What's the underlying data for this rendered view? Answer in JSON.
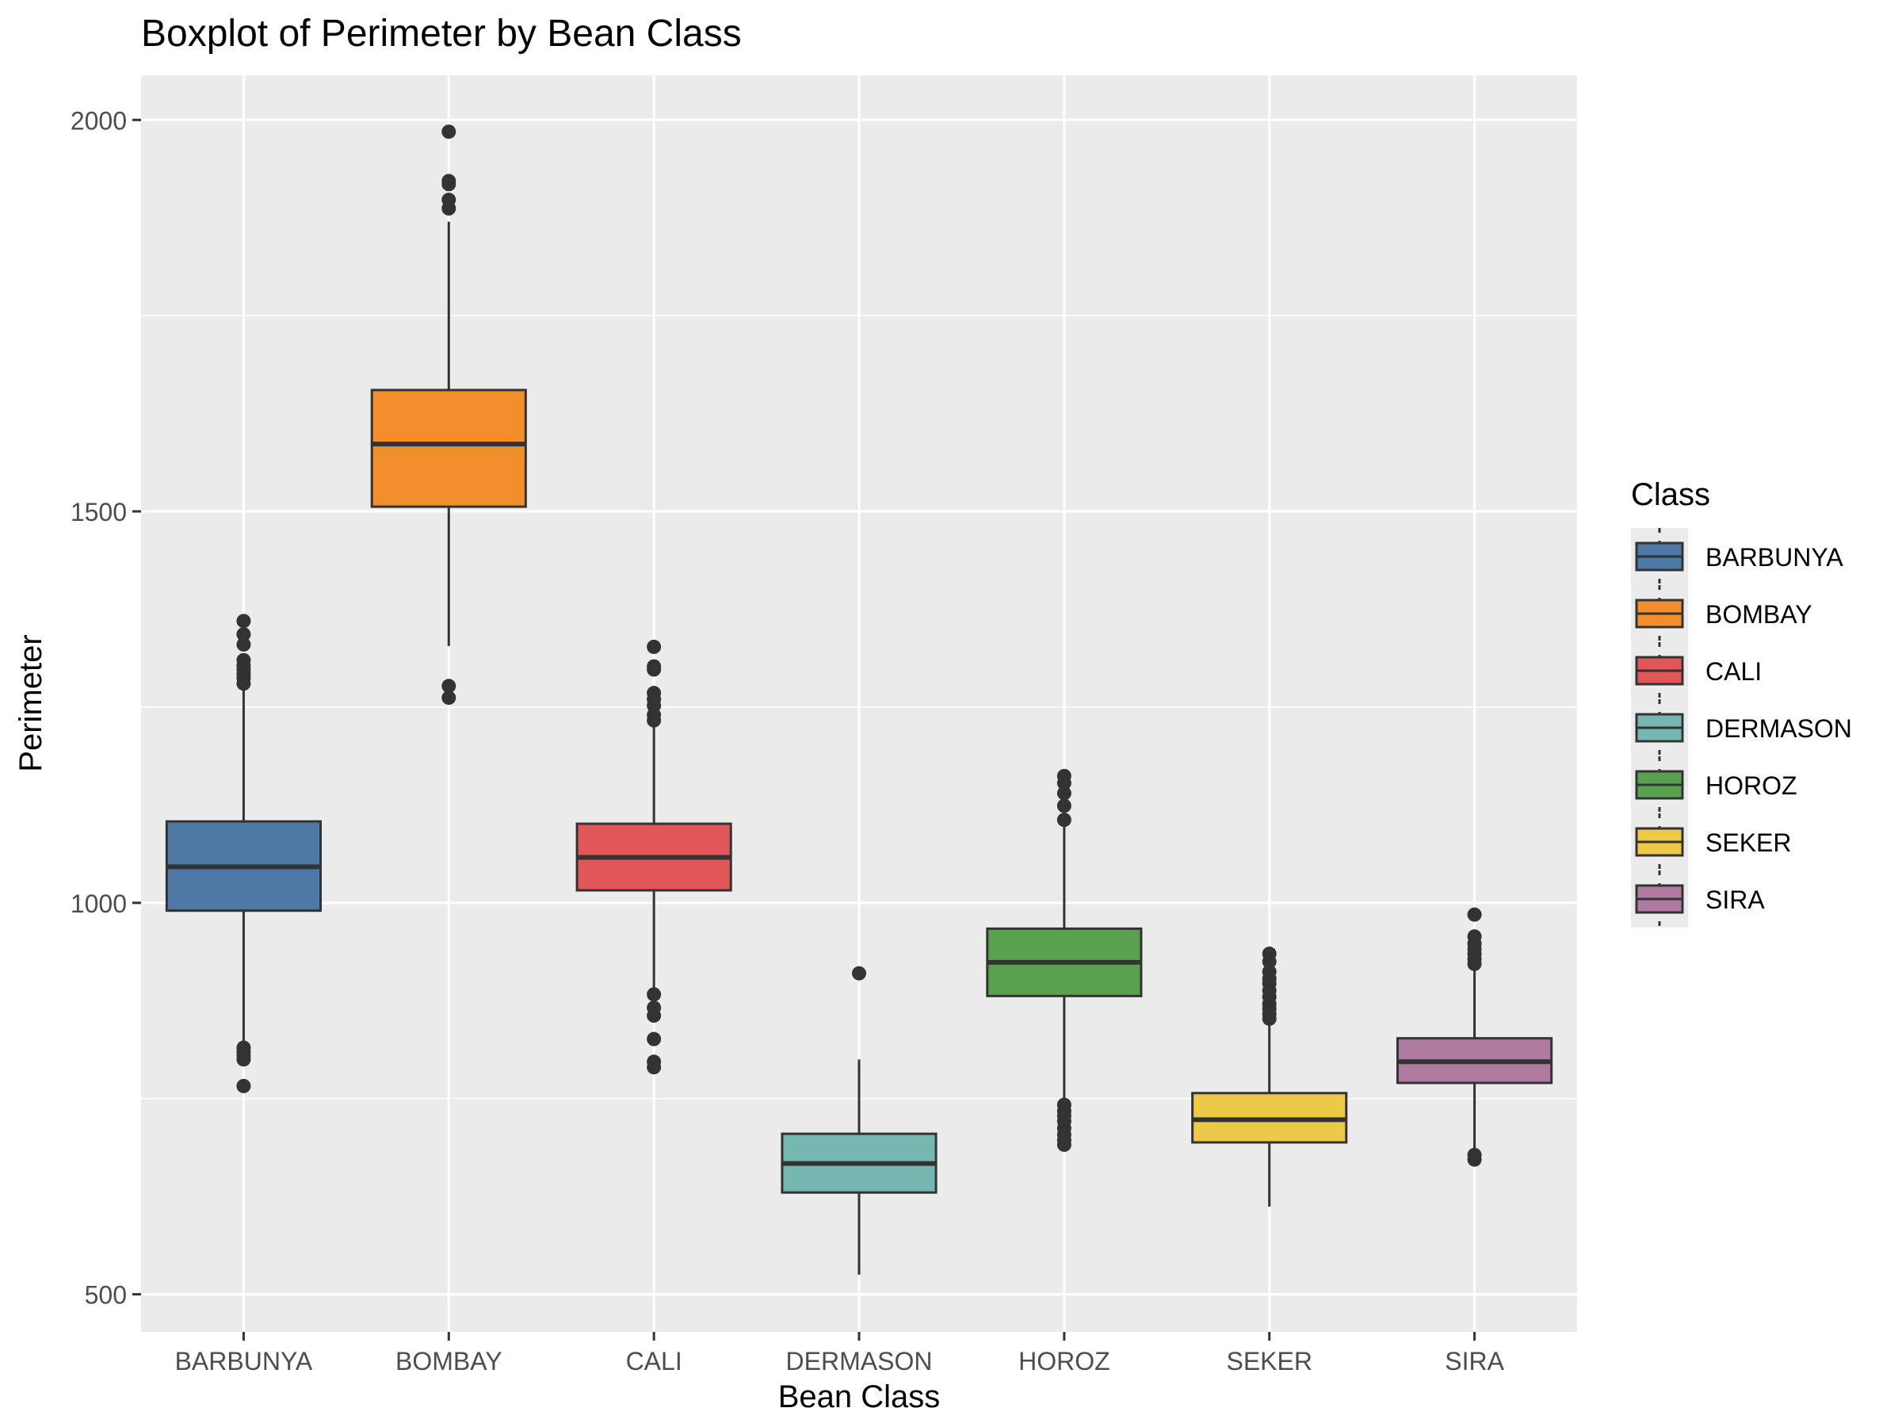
{
  "chart_data": {
    "type": "boxplot",
    "title": "Boxplot of Perimeter by Bean Class",
    "xlabel": "Bean Class",
    "ylabel": "Perimeter",
    "ylim": [
      452,
      2057
    ],
    "y_ticks": [
      500,
      1000,
      1500,
      2000
    ],
    "grid": true,
    "legend": {
      "title": "Class",
      "position": "right"
    },
    "categories": [
      "BARBUNYA",
      "BOMBAY",
      "CALI",
      "DERMASON",
      "HOROZ",
      "SEKER",
      "SIRA"
    ],
    "series": [
      {
        "name": "BARBUNYA",
        "color": "#4e79a7",
        "whisker_low": 818,
        "q1": 990,
        "median": 1046,
        "q3": 1104,
        "whisker_high": 1275,
        "outliers": [
          1360,
          1343,
          1330,
          1310,
          1303,
          1298,
          1292,
          1287,
          1280,
          815,
          810,
          805,
          800,
          766
        ]
      },
      {
        "name": "BOMBAY",
        "color": "#f28e2b",
        "whisker_low": 1328,
        "q1": 1506,
        "median": 1586,
        "q3": 1655,
        "whisker_high": 1870,
        "outliers": [
          1985,
          1922,
          1918,
          1898,
          1887,
          1277,
          1262
        ]
      },
      {
        "name": "CALI",
        "color": "#e15759",
        "whisker_low": 888,
        "q1": 1016,
        "median": 1058,
        "q3": 1101,
        "whisker_high": 1228,
        "outliers": [
          1327,
          1302,
          1298,
          1268,
          1260,
          1252,
          1240,
          1233,
          883,
          866,
          856,
          826,
          797,
          790
        ]
      },
      {
        "name": "DERMASON",
        "color": "#76b7b2",
        "whisker_low": 525,
        "q1": 630,
        "median": 667,
        "q3": 705,
        "whisker_high": 800,
        "outliers": [
          910
        ]
      },
      {
        "name": "HOROZ",
        "color": "#59a14f",
        "whisker_low": 740,
        "q1": 881,
        "median": 924,
        "q3": 967,
        "whisker_high": 1100,
        "outliers": [
          1162,
          1153,
          1140,
          1124,
          1106,
          742,
          734,
          728,
          721,
          712,
          704,
          697,
          691
        ]
      },
      {
        "name": "SEKER",
        "color": "#edc948",
        "whisker_low": 612,
        "q1": 694,
        "median": 723,
        "q3": 757,
        "whisker_high": 848,
        "outliers": [
          935,
          925,
          912,
          903,
          897,
          888,
          880,
          871,
          865,
          858,
          852
        ]
      },
      {
        "name": "SIRA",
        "color": "#b07aa1",
        "whisker_low": 683,
        "q1": 770,
        "median": 797,
        "q3": 827,
        "whisker_high": 915,
        "outliers": [
          985,
          957,
          948,
          941,
          935,
          928,
          922,
          678,
          672
        ]
      }
    ]
  }
}
